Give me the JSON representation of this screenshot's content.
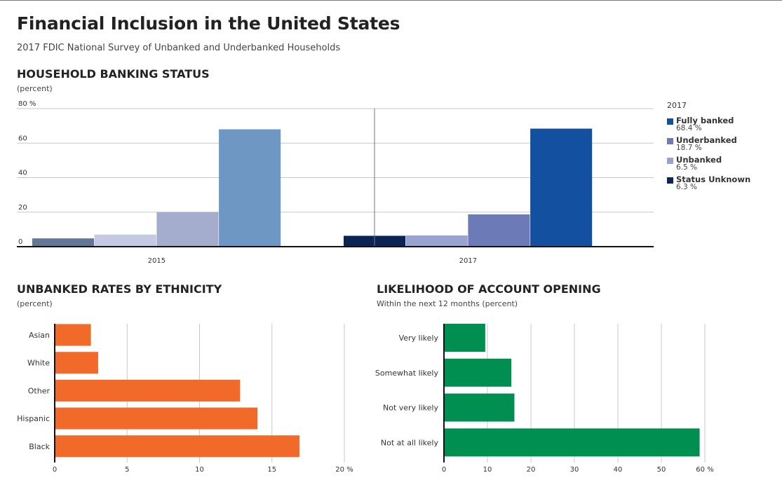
{
  "page": {
    "title": "Financial Inclusion in the United States",
    "subtitle": "2017 FDIC National Survey of Unbanked and Underbanked Households"
  },
  "sections": {
    "banking": {
      "title": "HOUSEHOLD BANKING STATUS",
      "unit": "(percent)"
    },
    "ethnicity": {
      "title": "UNBANKED RATES BY ETHNICITY",
      "unit": "(percent)"
    },
    "likelihood": {
      "title": "LIKELIHOOD OF ACCOUNT OPENING",
      "unit": "Within the next 12 months (percent)"
    }
  },
  "legend": {
    "year": "2017",
    "items": [
      {
        "label": "Fully banked",
        "value": "68.4 %",
        "color": "#1450a0"
      },
      {
        "label": "Underbanked",
        "value": "18.7 %",
        "color": "#6c7ab8"
      },
      {
        "label": "Unbanked",
        "value": "6.5 %",
        "color": "#98a3cf"
      },
      {
        "label": "Status Unknown",
        "value": "6.3 %",
        "color": "#0c2454"
      }
    ]
  },
  "chart_data": [
    {
      "type": "bar",
      "title": "HOUSEHOLD BANKING STATUS",
      "ylabel": "(percent)",
      "categories": [
        "2015",
        "2017"
      ],
      "series_order": [
        "Status Unknown",
        "Unbanked",
        "Underbanked",
        "Fully banked"
      ],
      "groups": [
        {
          "category": "2015",
          "values": [
            4.8,
            7.0,
            20.0,
            68.0
          ],
          "colors": [
            "#637897",
            "#c5c9e3",
            "#a5adcf",
            "#6e97c3"
          ]
        },
        {
          "category": "2017",
          "values": [
            6.3,
            6.5,
            18.7,
            68.4
          ],
          "colors": [
            "#0c2454",
            "#98a3cf",
            "#6c7ab8",
            "#1450a0"
          ]
        }
      ],
      "ylim": [
        0,
        80
      ],
      "yticks": [
        0,
        20,
        40,
        60,
        80
      ],
      "ytick_labels": [
        "0",
        "20",
        "40",
        "60",
        "80 %"
      ],
      "grid": true
    },
    {
      "type": "bar",
      "orientation": "horizontal",
      "title": "UNBANKED RATES BY ETHNICITY",
      "xlabel": "(percent)",
      "categories": [
        "Asian",
        "White",
        "Other",
        "Hispanic",
        "Black"
      ],
      "values": [
        2.5,
        3.0,
        12.8,
        14.0,
        16.9
      ],
      "color": "#f26a2a",
      "xlim": [
        0,
        20
      ],
      "xticks": [
        0,
        5,
        10,
        15,
        20
      ],
      "xtick_labels": [
        "0",
        "5",
        "10",
        "15",
        "20 %"
      ],
      "grid": true
    },
    {
      "type": "bar",
      "orientation": "horizontal",
      "title": "LIKELIHOOD OF ACCOUNT OPENING",
      "xlabel": "Within the next 12 months (percent)",
      "categories": [
        "Very likely",
        "Somewhat likely",
        "Not very likely",
        "Not at all likely"
      ],
      "values": [
        9.5,
        15.5,
        16.2,
        58.8
      ],
      "color": "#008f51",
      "xlim": [
        0,
        60
      ],
      "xticks": [
        0,
        10,
        20,
        30,
        40,
        50,
        60
      ],
      "xtick_labels": [
        "0",
        "10",
        "20",
        "30",
        "40",
        "50",
        "60 %"
      ],
      "grid": true
    }
  ]
}
